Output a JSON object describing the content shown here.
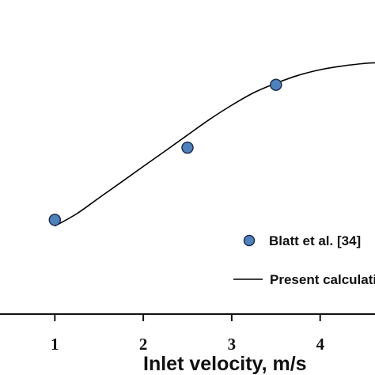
{
  "chart_data": {
    "type": "scatter",
    "xlabel": "Inlet velocity, m/s",
    "ylabel": "",
    "title": "",
    "x_ticks": [
      1,
      2,
      3,
      4
    ],
    "xlim": [
      0.38,
      4.62
    ],
    "ylim": [
      0.0,
      1.0
    ],
    "grid": false,
    "legend_position": "bottom-right",
    "series": [
      {
        "name": "Blatt et al. [34]",
        "kind": "markers",
        "color": "#4f81bd",
        "x": [
          1.0,
          2.5,
          3.5
        ],
        "y": [
          0.3,
          0.53,
          0.73
        ]
      },
      {
        "name": "Present calculation",
        "kind": "line",
        "color": "#000000",
        "x": [
          1.0,
          1.25,
          1.5,
          1.75,
          2.0,
          2.25,
          2.5,
          2.75,
          3.0,
          3.25,
          3.5,
          3.75,
          4.0,
          4.25,
          4.5,
          4.62
        ],
        "y": [
          0.28,
          0.32,
          0.37,
          0.42,
          0.47,
          0.52,
          0.57,
          0.62,
          0.665,
          0.705,
          0.735,
          0.76,
          0.778,
          0.79,
          0.798,
          0.8
        ]
      }
    ],
    "legend": {
      "marker_label": "Blatt et al. [34]",
      "line_label": "Present calculation"
    }
  }
}
